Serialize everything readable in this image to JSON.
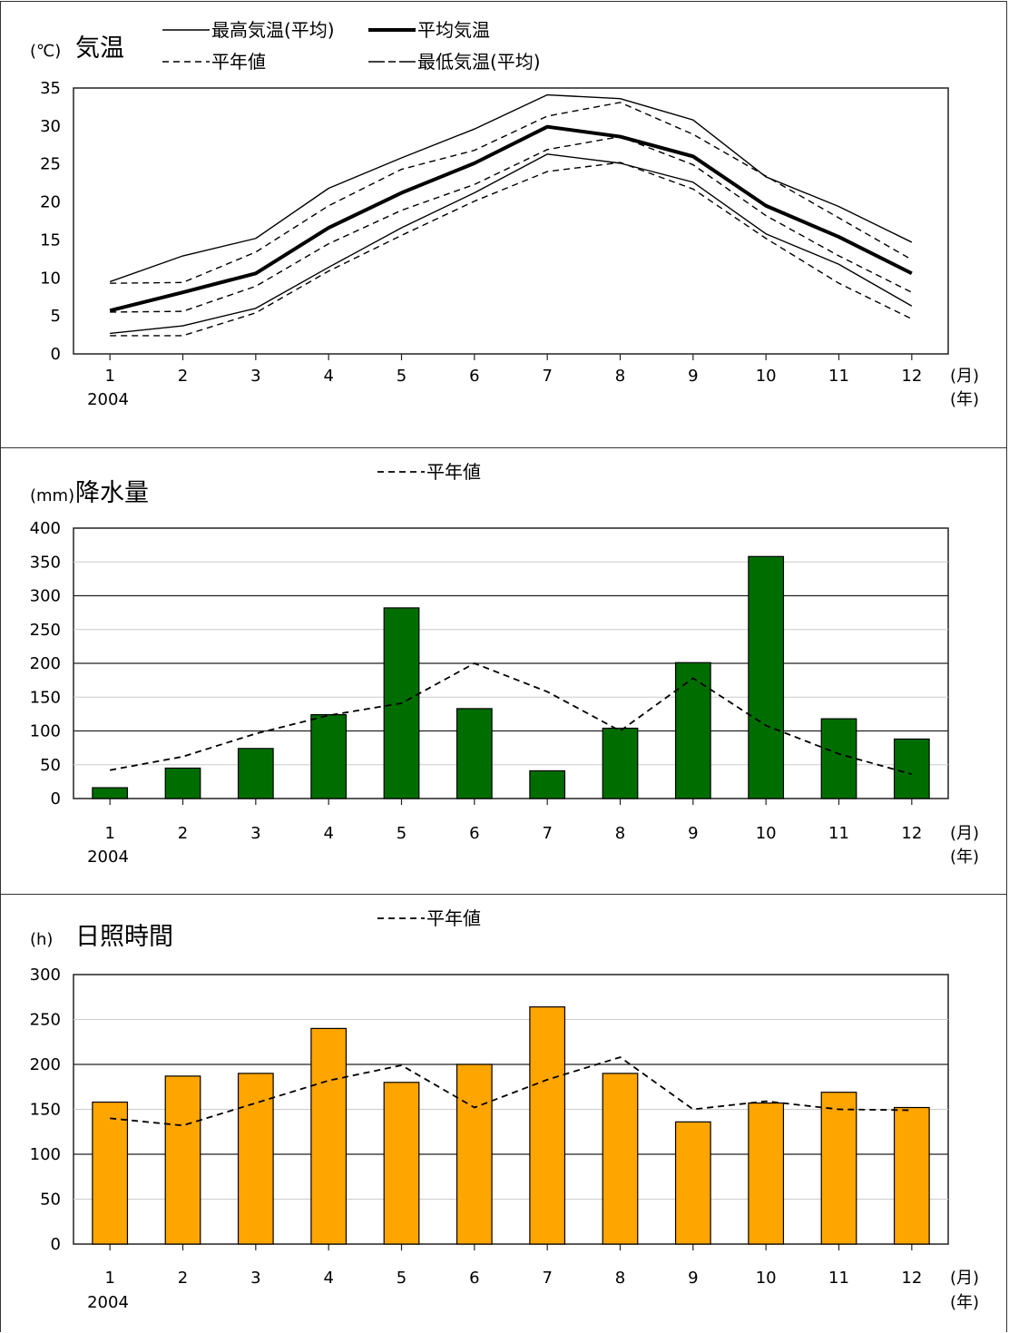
{
  "chart_data": [
    {
      "type": "line",
      "unit_label": "(℃)",
      "title": "気温",
      "categories": [
        "1",
        "2",
        "3",
        "4",
        "5",
        "6",
        "7",
        "8",
        "9",
        "10",
        "11",
        "12"
      ],
      "year_label": "2004",
      "x_unit_month": "(月)",
      "x_unit_year": "(年)",
      "ylim": [
        0,
        35
      ],
      "yticks": [
        0,
        5,
        10,
        15,
        20,
        25,
        30,
        35
      ],
      "legend": [
        "最高気温(平均)",
        "平均気温",
        "平年値",
        "最低気温(平均)"
      ],
      "series": [
        {
          "name": "最高気温(平均)",
          "style": "thin",
          "values": [
            9.5,
            12.9,
            15.2,
            21.8,
            25.8,
            29.6,
            34.1,
            33.6,
            30.8,
            23.3,
            19.4,
            14.7
          ]
        },
        {
          "name": "平均気温",
          "style": "bold",
          "values": [
            5.7,
            8.1,
            10.6,
            16.6,
            21.2,
            25.1,
            29.9,
            28.6,
            26.0,
            19.5,
            15.4,
            10.6
          ]
        },
        {
          "name": "最低気温(平均)",
          "style": "thin",
          "values": [
            2.7,
            3.7,
            6.0,
            11.4,
            16.6,
            21.2,
            26.3,
            25.1,
            22.6,
            15.8,
            11.8,
            6.3
          ]
        },
        {
          "name": "平年値",
          "style": "dashed",
          "values": [
            9.3,
            9.4,
            13.4,
            19.5,
            24.3,
            26.8,
            31.3,
            33.1,
            28.9,
            23.4,
            17.9,
            12.4
          ]
        },
        {
          "name": "平年値",
          "style": "dashed",
          "values": [
            5.5,
            5.6,
            8.9,
            14.5,
            18.9,
            22.3,
            26.9,
            28.6,
            24.9,
            18.2,
            12.9,
            8.1
          ]
        },
        {
          "name": "平年値",
          "style": "dashed",
          "values": [
            2.4,
            2.4,
            5.4,
            10.9,
            15.6,
            20.1,
            24.0,
            25.2,
            21.7,
            15.2,
            9.3,
            4.6
          ]
        }
      ]
    },
    {
      "type": "bar",
      "unit_label": "(mm)",
      "title": "降水量",
      "categories": [
        "1",
        "2",
        "3",
        "4",
        "5",
        "6",
        "7",
        "8",
        "9",
        "10",
        "11",
        "12"
      ],
      "year_label": "2004",
      "x_unit_month": "(月)",
      "x_unit_year": "(年)",
      "ylim": [
        0,
        400
      ],
      "yticks": [
        0,
        50,
        100,
        150,
        200,
        250,
        300,
        350,
        400
      ],
      "bar_color": "#006d00",
      "legend": [
        "平年値"
      ],
      "series": [
        {
          "name": "",
          "values": [
            16,
            45,
            74,
            124,
            282,
            133,
            41,
            104,
            201,
            358,
            118,
            88
          ]
        },
        {
          "name": "平年値",
          "style": "dashed",
          "values": [
            42,
            62,
            96,
            123,
            141,
            200,
            158,
            100,
            178,
            108,
            66,
            36
          ]
        }
      ]
    },
    {
      "type": "bar",
      "unit_label": "(h)",
      "title": "日照時間",
      "categories": [
        "1",
        "2",
        "3",
        "4",
        "5",
        "6",
        "7",
        "8",
        "9",
        "10",
        "11",
        "12"
      ],
      "year_label": "2004",
      "x_unit_month": "(月)",
      "x_unit_year": "(年)",
      "ylim": [
        0,
        300
      ],
      "yticks": [
        0,
        50,
        100,
        150,
        200,
        250,
        300
      ],
      "bar_color": "#ffa500",
      "legend": [
        "平年値"
      ],
      "series": [
        {
          "name": "",
          "values": [
            158,
            187,
            190,
            240,
            180,
            200,
            264,
            190,
            136,
            157,
            169,
            152
          ]
        },
        {
          "name": "平年値",
          "style": "dashed",
          "values": [
            140,
            132,
            157,
            182,
            199,
            152,
            183,
            208,
            150,
            159,
            150,
            149
          ]
        }
      ]
    }
  ]
}
